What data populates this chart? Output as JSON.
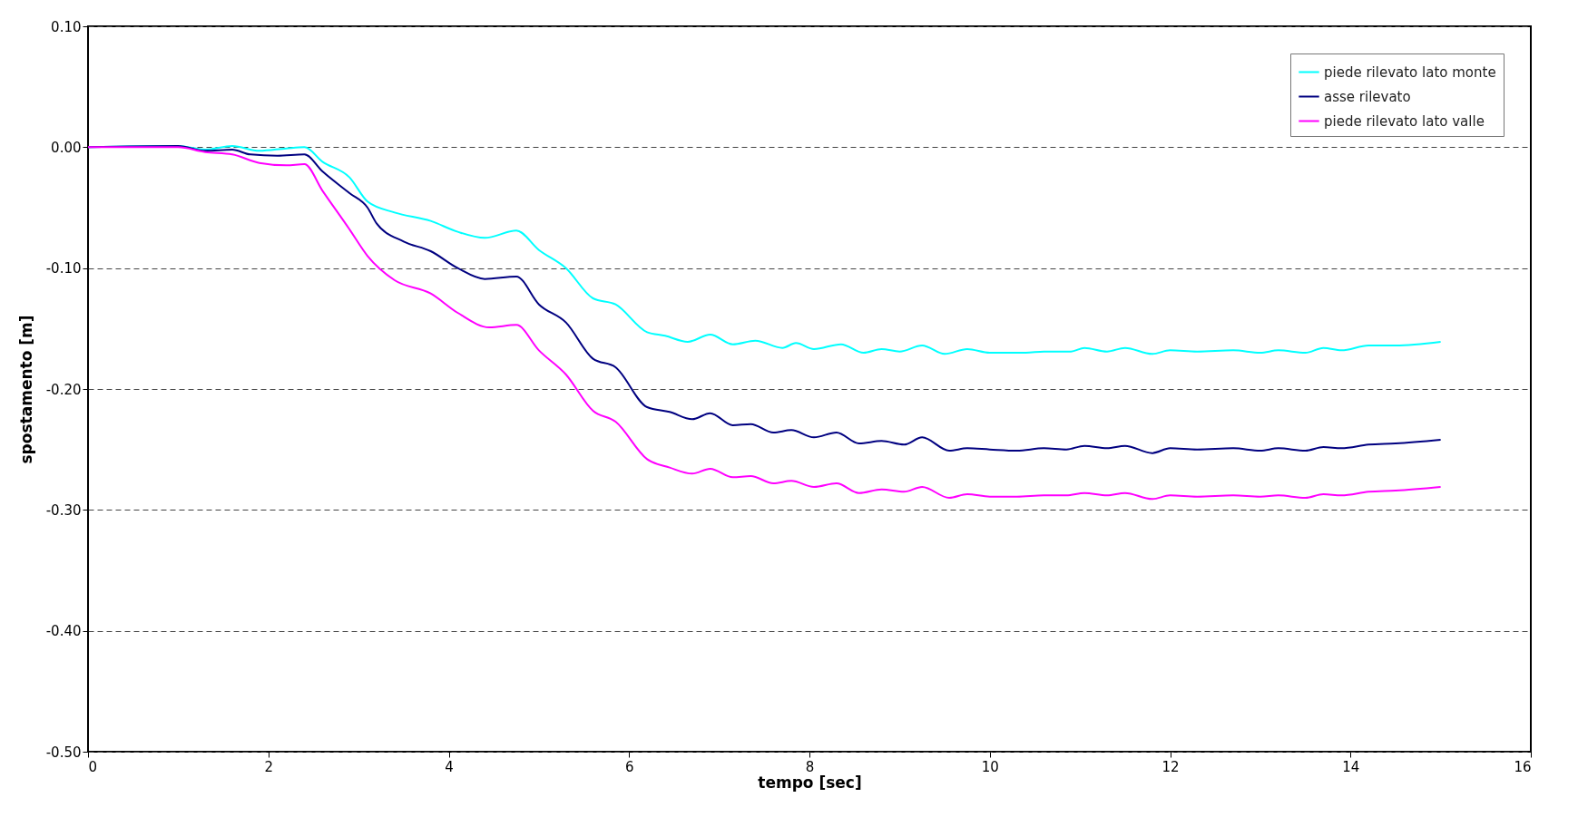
{
  "chart_data": {
    "type": "line",
    "xlabel": "tempo [sec]",
    "ylabel": "spostamento [m]",
    "xlim": [
      0,
      16
    ],
    "xticks": [
      0,
      2,
      4,
      6,
      8,
      10,
      12,
      14,
      16
    ],
    "ylim": [
      -0.5,
      0.1
    ],
    "yticks": [
      {
        "value": 0.1,
        "label": "0.10"
      },
      {
        "value": 0,
        "label": "0.00"
      },
      {
        "value": -0.1,
        "label": "-0.10"
      },
      {
        "value": -0.2,
        "label": "-0.20"
      },
      {
        "value": -0.3,
        "label": "-0.30"
      },
      {
        "value": -0.4,
        "label": "-0.40"
      },
      {
        "value": -0.5,
        "label": "-0.50"
      }
    ],
    "grid": "y",
    "legend": "top right",
    "series": [
      {
        "name": "piede rilevato lato monte",
        "color": "#00ffff",
        "x": [
          0,
          1.0,
          1.3,
          1.6,
          1.9,
          2.2,
          2.4,
          2.6,
          2.9,
          3.1,
          3.4,
          3.8,
          4.1,
          4.4,
          4.75,
          5.0,
          5.3,
          5.6,
          5.85,
          6.2,
          6.4,
          6.65,
          6.9,
          7.15,
          7.4,
          7.7,
          7.85,
          8.05,
          8.35,
          8.6,
          8.8,
          9.0,
          9.25,
          9.5,
          9.75,
          10.0,
          10.4,
          10.6,
          10.9,
          11.05,
          11.3,
          11.5,
          11.8,
          12.0,
          12.3,
          12.7,
          13.0,
          13.2,
          13.5,
          13.7,
          13.9,
          14.2,
          14.5,
          15.0
        ],
        "values": [
          0,
          0.001,
          -0.002,
          0.001,
          -0.003,
          -0.001,
          0.0,
          -0.012,
          -0.025,
          -0.045,
          -0.054,
          -0.061,
          -0.07,
          -0.075,
          -0.069,
          -0.085,
          -0.1,
          -0.125,
          -0.13,
          -0.153,
          -0.156,
          -0.161,
          -0.155,
          -0.163,
          -0.16,
          -0.166,
          -0.162,
          -0.167,
          -0.163,
          -0.17,
          -0.167,
          -0.169,
          -0.164,
          -0.171,
          -0.167,
          -0.17,
          -0.17,
          -0.169,
          -0.169,
          -0.166,
          -0.169,
          -0.166,
          -0.171,
          -0.168,
          -0.169,
          -0.168,
          -0.17,
          -0.168,
          -0.17,
          -0.166,
          -0.168,
          -0.164,
          -0.164,
          -0.161
        ]
      },
      {
        "name": "asse rilevato",
        "color": "#000080",
        "x": [
          0,
          1.0,
          1.3,
          1.6,
          1.8,
          2.1,
          2.4,
          2.6,
          2.9,
          3.1,
          3.2,
          3.5,
          3.8,
          4.1,
          4.4,
          4.75,
          5.0,
          5.3,
          5.6,
          5.85,
          6.2,
          6.45,
          6.7,
          6.9,
          7.15,
          7.35,
          7.6,
          7.8,
          8.05,
          8.3,
          8.55,
          8.8,
          9.05,
          9.25,
          9.55,
          9.75,
          10.0,
          10.3,
          10.6,
          10.85,
          11.05,
          11.3,
          11.5,
          11.8,
          12.0,
          12.3,
          12.7,
          13.0,
          13.2,
          13.5,
          13.7,
          13.9,
          14.2,
          14.5,
          15.0
        ],
        "values": [
          0,
          0.001,
          -0.003,
          -0.002,
          -0.006,
          -0.007,
          -0.006,
          -0.02,
          -0.038,
          -0.05,
          -0.063,
          -0.078,
          -0.086,
          -0.1,
          -0.109,
          -0.107,
          -0.13,
          -0.145,
          -0.175,
          -0.182,
          -0.215,
          -0.219,
          -0.225,
          -0.22,
          -0.23,
          -0.229,
          -0.236,
          -0.234,
          -0.24,
          -0.236,
          -0.245,
          -0.243,
          -0.246,
          -0.24,
          -0.251,
          -0.249,
          -0.25,
          -0.251,
          -0.249,
          -0.25,
          -0.247,
          -0.249,
          -0.247,
          -0.253,
          -0.249,
          -0.25,
          -0.249,
          -0.251,
          -0.249,
          -0.251,
          -0.248,
          -0.249,
          -0.246,
          -0.245,
          -0.242
        ]
      },
      {
        "name": "piede rilevato lato valle",
        "color": "#ff00ff",
        "x": [
          0,
          1.0,
          1.3,
          1.6,
          1.9,
          2.2,
          2.4,
          2.6,
          2.9,
          3.1,
          3.4,
          3.8,
          4.1,
          4.45,
          4.75,
          5.0,
          5.3,
          5.6,
          5.85,
          6.2,
          6.45,
          6.7,
          6.9,
          7.15,
          7.35,
          7.6,
          7.8,
          8.05,
          8.3,
          8.55,
          8.8,
          9.05,
          9.25,
          9.55,
          9.75,
          10.0,
          10.3,
          10.6,
          10.85,
          11.05,
          11.3,
          11.5,
          11.8,
          12.0,
          12.3,
          12.7,
          13.0,
          13.2,
          13.5,
          13.7,
          13.9,
          14.2,
          14.5,
          15.0
        ],
        "values": [
          0,
          0.0,
          -0.004,
          -0.006,
          -0.013,
          -0.015,
          -0.014,
          -0.036,
          -0.068,
          -0.09,
          -0.11,
          -0.121,
          -0.137,
          -0.149,
          -0.147,
          -0.168,
          -0.188,
          -0.218,
          -0.227,
          -0.258,
          -0.265,
          -0.27,
          -0.266,
          -0.273,
          -0.272,
          -0.278,
          -0.276,
          -0.281,
          -0.278,
          -0.286,
          -0.283,
          -0.285,
          -0.281,
          -0.29,
          -0.287,
          -0.289,
          -0.289,
          -0.288,
          -0.288,
          -0.286,
          -0.288,
          -0.286,
          -0.291,
          -0.288,
          -0.289,
          -0.288,
          -0.289,
          -0.288,
          -0.29,
          -0.287,
          -0.288,
          -0.285,
          -0.284,
          -0.281
        ]
      }
    ]
  }
}
